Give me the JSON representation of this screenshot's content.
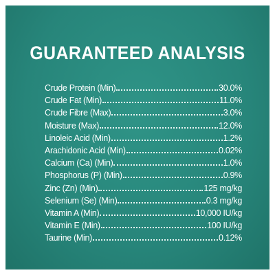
{
  "title": "GUARANTEED ANALYSIS",
  "rows": [
    {
      "label": "Crude Protein (Min)",
      "value": "30.0%"
    },
    {
      "label": "Crude Fat (Min)",
      "value": "11.0%"
    },
    {
      "label": "Crude Fibre (Max)",
      "value": "3.0%"
    },
    {
      "label": "Moisture (Max)",
      "value": "12.0%"
    },
    {
      "label": "Linoleic Acid (Min)",
      "value": "1.2%"
    },
    {
      "label": "Arachidonic Acid (Min)",
      "value": "0.02%"
    },
    {
      "label": "Calcium (Ca) (Min)",
      "value": "1.0%"
    },
    {
      "label": "Phosphorus (P) (Min)",
      "value": "0.9%"
    },
    {
      "label": "Zinc (Zn) (Min)",
      "value": "125 mg/kg"
    },
    {
      "label": "Selenium (Se) (Min)",
      "value": "0.3 mg/kg"
    },
    {
      "label": "Vitamin A (Min)",
      "value": "10,000 IU/kg"
    },
    {
      "label": "Vitamin E (Min)",
      "value": "100 IU/kg"
    },
    {
      "label": "Taurine (Min)",
      "value": "0.12%"
    }
  ]
}
